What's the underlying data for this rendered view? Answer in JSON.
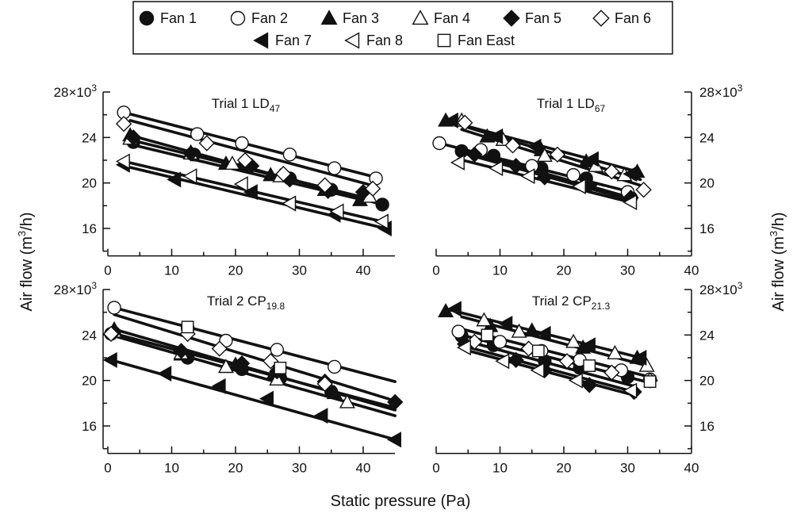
{
  "figure": {
    "xlabel": "Static pressure (Pa)",
    "ylabel_left": "Air flow (m",
    "ylabel_right": "Air flow (m",
    "ylabel_sup": "3",
    "ylabel_tail": "/h)"
  },
  "legend": {
    "entries": [
      {
        "label": "Fan 1",
        "marker": "circle",
        "filled": true
      },
      {
        "label": "Fan 2",
        "marker": "circle",
        "filled": false
      },
      {
        "label": "Fan 3",
        "marker": "triangle-up",
        "filled": true
      },
      {
        "label": "Fan 4",
        "marker": "triangle-up",
        "filled": false
      },
      {
        "label": "Fan 5",
        "marker": "diamond",
        "filled": true
      },
      {
        "label": "Fan 6",
        "marker": "diamond",
        "filled": false
      },
      {
        "label": "Fan 7",
        "marker": "triangle-left",
        "filled": true
      },
      {
        "label": "Fan 8",
        "marker": "triangle-left",
        "filled": false
      },
      {
        "label": "Fan East",
        "marker": "square",
        "filled": false
      }
    ]
  },
  "chart_data": [
    {
      "type": "scatter",
      "title": "Trial 1 LD",
      "title_sub": "47",
      "xlim": [
        0,
        45
      ],
      "ylim": [
        14000,
        28000
      ],
      "yticks": [
        16000,
        20000,
        24000,
        28000
      ],
      "ytick_labels": [
        "16",
        "20",
        "24",
        "28×10"
      ],
      "ytick_top_sup": "3",
      "xticks": [
        0,
        10,
        20,
        30,
        40
      ],
      "xtick_labels": [
        "0",
        "10",
        "20",
        "30",
        "40"
      ],
      "series": [
        {
          "name": "Fan 1",
          "x": [
            4,
            13.5,
            21.5,
            28.5,
            35,
            43
          ],
          "y": [
            23600,
            22500,
            21600,
            20400,
            19400,
            18100
          ]
        },
        {
          "name": "Fan 2",
          "x": [
            2.5,
            14,
            21,
            28.5,
            35.5,
            42
          ],
          "y": [
            26200,
            24300,
            23500,
            22500,
            21300,
            20400
          ]
        },
        {
          "name": "Fan 3",
          "x": [
            3.5,
            13,
            18.5,
            25.5,
            34,
            39.5
          ],
          "y": [
            24200,
            22700,
            21700,
            20700,
            19400,
            18500
          ]
        },
        {
          "name": "Fan 4",
          "x": [
            3.5,
            13,
            19.5,
            27,
            34.5,
            41
          ],
          "y": [
            23900,
            22600,
            21700,
            20600,
            19500,
            18800
          ]
        },
        {
          "name": "Fan 5",
          "x": [
            4,
            13,
            22.5,
            28.5,
            34.5,
            40
          ],
          "y": [
            24000,
            22600,
            21500,
            20300,
            19300,
            19200
          ]
        },
        {
          "name": "Fan 6",
          "x": [
            2.5,
            15.5,
            21.5,
            27.5,
            34,
            41.5
          ],
          "y": [
            25200,
            23500,
            22000,
            20800,
            19800,
            19500
          ]
        },
        {
          "name": "Fan 7",
          "x": [
            2.5,
            10.5,
            22.5,
            28.5,
            35.5,
            43.5
          ],
          "y": [
            21600,
            20300,
            19200,
            18200,
            17200,
            16000
          ]
        },
        {
          "name": "Fan 8",
          "x": [
            2.5,
            13,
            21,
            28.5,
            36,
            43
          ],
          "y": [
            21900,
            20600,
            19900,
            18200,
            17500,
            16600
          ]
        },
        {
          "name": "Fan East",
          "x": [],
          "y": []
        }
      ],
      "fits": [
        {
          "x": [
            2.5,
            42
          ],
          "y": [
            26200,
            20500
          ]
        },
        {
          "x": [
            3.5,
            42
          ],
          "y": [
            25500,
            19700
          ]
        },
        {
          "x": [
            3.5,
            43
          ],
          "y": [
            24200,
            18100
          ]
        },
        {
          "x": [
            3.5,
            41
          ],
          "y": [
            23800,
            18600
          ]
        },
        {
          "x": [
            3.5,
            40
          ],
          "y": [
            23400,
            18500
          ]
        },
        {
          "x": [
            2.5,
            43
          ],
          "y": [
            21900,
            16600
          ]
        },
        {
          "x": [
            2.5,
            43.5
          ],
          "y": [
            21500,
            16000
          ]
        }
      ]
    },
    {
      "type": "scatter",
      "title": "Trial 1 LD",
      "title_sub": "67",
      "xlim": [
        0,
        40
      ],
      "ylim": [
        14000,
        28000
      ],
      "yticks": [
        16000,
        20000,
        24000,
        28000
      ],
      "ytick_labels": [
        "16",
        "20",
        "24",
        "28×10"
      ],
      "ytick_top_sup": "3",
      "xticks": [
        0,
        10,
        20,
        30,
        40
      ],
      "xtick_labels": [
        "0",
        "10",
        "20",
        "30",
        "40"
      ],
      "series": [
        {
          "name": "Fan 1",
          "x": [
            4,
            9,
            16.5,
            23.5,
            30.5
          ],
          "y": [
            22800,
            22400,
            21300,
            20400,
            18700
          ]
        },
        {
          "name": "Fan 2",
          "x": [
            0.5,
            7,
            15,
            21.5,
            30
          ],
          "y": [
            23500,
            22900,
            21500,
            20700,
            19200
          ]
        },
        {
          "name": "Fan 3",
          "x": [
            1.5,
            8,
            16.5,
            23.5,
            31.5
          ],
          "y": [
            25500,
            24100,
            22900,
            21900,
            21000
          ]
        },
        {
          "name": "Fan 4",
          "x": [
            4,
            10.5,
            17,
            25,
            29.5
          ],
          "y": [
            25500,
            23800,
            22400,
            21500,
            20700
          ]
        },
        {
          "name": "Fan 5",
          "x": [
            6,
            12.5,
            17,
            24,
            30.5
          ],
          "y": [
            22500,
            21500,
            20500,
            19800,
            18700
          ]
        },
        {
          "name": "Fan 6",
          "x": [
            4.5,
            12,
            19,
            27.5,
            32.5
          ],
          "y": [
            25300,
            23300,
            22500,
            21000,
            19400
          ]
        },
        {
          "name": "Fan 7",
          "x": [
            2.5,
            9.5,
            15.5,
            24.5,
            30.5
          ],
          "y": [
            25500,
            24100,
            23200,
            22100,
            20800
          ]
        },
        {
          "name": "Fan 8",
          "x": [
            3.5,
            9.5,
            14.5,
            22.5,
            30.5
          ],
          "y": [
            21800,
            21300,
            20600,
            19700,
            18300
          ]
        },
        {
          "name": "Fan East",
          "x": [],
          "y": []
        }
      ],
      "fits": [
        {
          "x": [
            1.5,
            31.5
          ],
          "y": [
            25500,
            21000
          ]
        },
        {
          "x": [
            2.5,
            32
          ],
          "y": [
            25300,
            20300
          ]
        },
        {
          "x": [
            4,
            32.5
          ],
          "y": [
            24700,
            19700
          ]
        },
        {
          "x": [
            0.5,
            30.5
          ],
          "y": [
            23500,
            19200
          ]
        },
        {
          "x": [
            4,
            30.5
          ],
          "y": [
            22900,
            18700
          ]
        },
        {
          "x": [
            3.5,
            30.5
          ],
          "y": [
            22100,
            18300
          ]
        },
        {
          "x": [
            5,
            30.5
          ],
          "y": [
            22500,
            18500
          ]
        }
      ]
    },
    {
      "type": "scatter",
      "title": "Trial 2 CP",
      "title_sub": "19.8",
      "xlim": [
        0,
        45
      ],
      "ylim": [
        14000,
        28000
      ],
      "yticks": [
        16000,
        20000,
        24000,
        28000
      ],
      "ytick_labels": [
        "16",
        "20",
        "24",
        "28×10"
      ],
      "ytick_top_sup": "3",
      "xticks": [
        0,
        10,
        20,
        30,
        40
      ],
      "xtick_labels": [
        "0",
        "10",
        "20",
        "30",
        "40"
      ],
      "series": [
        {
          "name": "Fan 1",
          "x": [
            0.5,
            12.5,
            21,
            27,
            35
          ],
          "y": [
            24100,
            22000,
            21000,
            20200,
            19000
          ]
        },
        {
          "name": "Fan 2",
          "x": [
            1,
            12.5,
            18.5,
            26.5,
            35.5
          ],
          "y": [
            26400,
            24600,
            23500,
            22700,
            21200
          ]
        },
        {
          "name": "Fan 3",
          "x": [
            1,
            11.5,
            20,
            26,
            35.5
          ],
          "y": [
            24500,
            22300,
            21400,
            20600,
            18900
          ]
        },
        {
          "name": "Fan 4",
          "x": [
            1,
            11.5,
            18.5,
            26.5,
            37.5
          ],
          "y": [
            24300,
            22400,
            21200,
            20100,
            18100
          ]
        },
        {
          "name": "Fan 5",
          "x": [
            1,
            11.5,
            21,
            26.5,
            34,
            45
          ],
          "y": [
            24300,
            22600,
            21500,
            20800,
            19900,
            18100
          ]
        },
        {
          "name": "Fan 6",
          "x": [
            0.5,
            12.5,
            17.5,
            25.5,
            34
          ],
          "y": [
            24100,
            24100,
            22800,
            21700,
            19700
          ]
        },
        {
          "name": "Fan 7",
          "x": [
            0.5,
            9,
            17.5,
            25,
            33.5,
            45
          ],
          "y": [
            21800,
            20600,
            19500,
            18400,
            16900,
            14800
          ]
        },
        {
          "name": "Fan 8",
          "x": [],
          "y": []
        },
        {
          "name": "Fan East",
          "x": [
            12.5,
            27
          ],
          "y": [
            24700,
            21100
          ]
        }
      ],
      "fits": [
        {
          "x": [
            1,
            45
          ],
          "y": [
            26400,
            19900
          ]
        },
        {
          "x": [
            1,
            45
          ],
          "y": [
            25800,
            18200
          ]
        },
        {
          "x": [
            0.5,
            45
          ],
          "y": [
            24200,
            17600
          ]
        },
        {
          "x": [
            1,
            45
          ],
          "y": [
            24500,
            17400
          ]
        },
        {
          "x": [
            0.5,
            45
          ],
          "y": [
            24000,
            16900
          ]
        },
        {
          "x": [
            0.5,
            45
          ],
          "y": [
            21800,
            14800
          ]
        }
      ]
    },
    {
      "type": "scatter",
      "title": "Trial 2 CP",
      "title_sub": "21.3",
      "xlim": [
        0,
        40
      ],
      "ylim": [
        14000,
        28000
      ],
      "yticks": [
        16000,
        20000,
        24000,
        28000
      ],
      "ytick_labels": [
        "16",
        "20",
        "24",
        "28×10"
      ],
      "ytick_top_sup": "3",
      "xticks": [
        0,
        10,
        20,
        30,
        40
      ],
      "xtick_labels": [
        "0",
        "10",
        "20",
        "30",
        "40"
      ],
      "series": [
        {
          "name": "Fan 1",
          "x": [
            4,
            9,
            17,
            22.5,
            30
          ],
          "y": [
            23900,
            23100,
            21700,
            21100,
            20300
          ]
        },
        {
          "name": "Fan 2",
          "x": [
            3.5,
            10,
            16.5,
            22.5,
            29,
            33.5
          ],
          "y": [
            24300,
            23400,
            22600,
            21800,
            20900,
            20100
          ]
        },
        {
          "name": "Fan 3",
          "x": [
            1.5,
            8.5,
            15,
            23,
            31.5
          ],
          "y": [
            26100,
            24800,
            24400,
            22900,
            22000
          ]
        },
        {
          "name": "Fan 4",
          "x": [
            7.5,
            13,
            21.5,
            28,
            33
          ],
          "y": [
            25300,
            24300,
            23400,
            22400,
            21300
          ]
        },
        {
          "name": "Fan 5",
          "x": [
            4.5,
            12.5,
            17,
            24,
            31
          ],
          "y": [
            23200,
            21800,
            20900,
            19600,
            19000
          ]
        },
        {
          "name": "Fan 6",
          "x": [
            6,
            14.5,
            20.5,
            27.5,
            33.5
          ],
          "y": [
            23400,
            22800,
            21700,
            20700,
            20000
          ]
        },
        {
          "name": "Fan 7",
          "x": [
            3,
            11,
            17,
            24,
            32
          ],
          "y": [
            26300,
            25000,
            24100,
            23100,
            22000
          ]
        },
        {
          "name": "Fan 8",
          "x": [
            4.5,
            10.5,
            16,
            22,
            30.5
          ],
          "y": [
            22900,
            21700,
            20900,
            20000,
            19100
          ]
        },
        {
          "name": "Fan East",
          "x": [
            8,
            16,
            24,
            33.5
          ],
          "y": [
            24000,
            22600,
            21300,
            19900
          ]
        }
      ],
      "fits": [
        {
          "x": [
            1.5,
            32
          ],
          "y": [
            26300,
            22000
          ]
        },
        {
          "x": [
            4,
            33
          ],
          "y": [
            25600,
            21300
          ]
        },
        {
          "x": [
            3.5,
            33.5
          ],
          "y": [
            24600,
            20300
          ]
        },
        {
          "x": [
            4,
            33.5
          ],
          "y": [
            24000,
            19800
          ]
        },
        {
          "x": [
            4.5,
            31
          ],
          "y": [
            23500,
            19500
          ]
        },
        {
          "x": [
            4.5,
            31
          ],
          "y": [
            23000,
            19000
          ]
        },
        {
          "x": [
            4.5,
            31
          ],
          "y": [
            22700,
            18700
          ]
        }
      ]
    }
  ]
}
